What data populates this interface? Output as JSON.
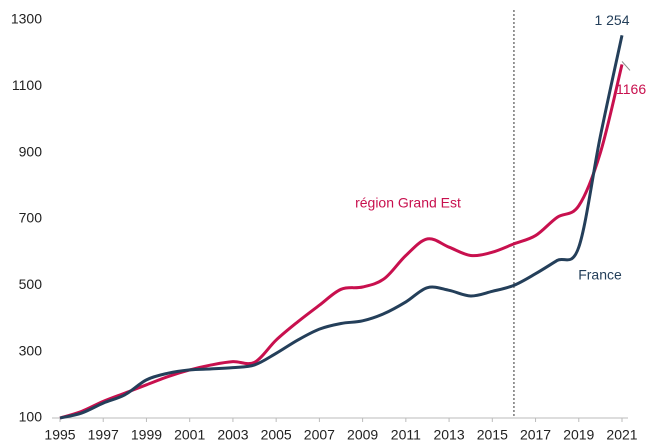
{
  "chart_data": {
    "type": "line",
    "x": [
      1995,
      1996,
      1997,
      1998,
      1999,
      2000,
      2001,
      2002,
      2003,
      2004,
      2005,
      2006,
      2007,
      2008,
      2009,
      2010,
      2011,
      2012,
      2013,
      2014,
      2015,
      2016,
      2017,
      2018,
      2019,
      2020,
      2021
    ],
    "series": [
      {
        "name": "région Grand Est",
        "color": "#c8104e",
        "values": [
          100,
          120,
          150,
          175,
          200,
          225,
          245,
          260,
          270,
          268,
          335,
          390,
          440,
          488,
          495,
          520,
          590,
          640,
          615,
          590,
          600,
          625,
          650,
          705,
          740,
          900,
          1166
        ]
      },
      {
        "name": "France",
        "color": "#243f5a",
        "values": [
          100,
          115,
          145,
          170,
          215,
          235,
          245,
          248,
          252,
          260,
          295,
          335,
          368,
          385,
          393,
          415,
          450,
          493,
          485,
          468,
          482,
          500,
          535,
          575,
          615,
          950,
          1254
        ],
        "value_labels": [
          null,
          null,
          null,
          null,
          null,
          null,
          null,
          null,
          null,
          null,
          null,
          null,
          null,
          null,
          null,
          null,
          null,
          null,
          null,
          null,
          null,
          null,
          null,
          null,
          null,
          null,
          "1 254"
        ]
      }
    ],
    "xlim": [
      1995,
      2021
    ],
    "xticks": [
      1995,
      1997,
      1999,
      2001,
      2003,
      2005,
      2007,
      2009,
      2011,
      2013,
      2015,
      2017,
      2019,
      2021
    ],
    "ylim": [
      100,
      1300
    ],
    "yticks": [
      100,
      300,
      500,
      700,
      900,
      1100,
      1300
    ],
    "vline": 2016,
    "grid": false
  }
}
